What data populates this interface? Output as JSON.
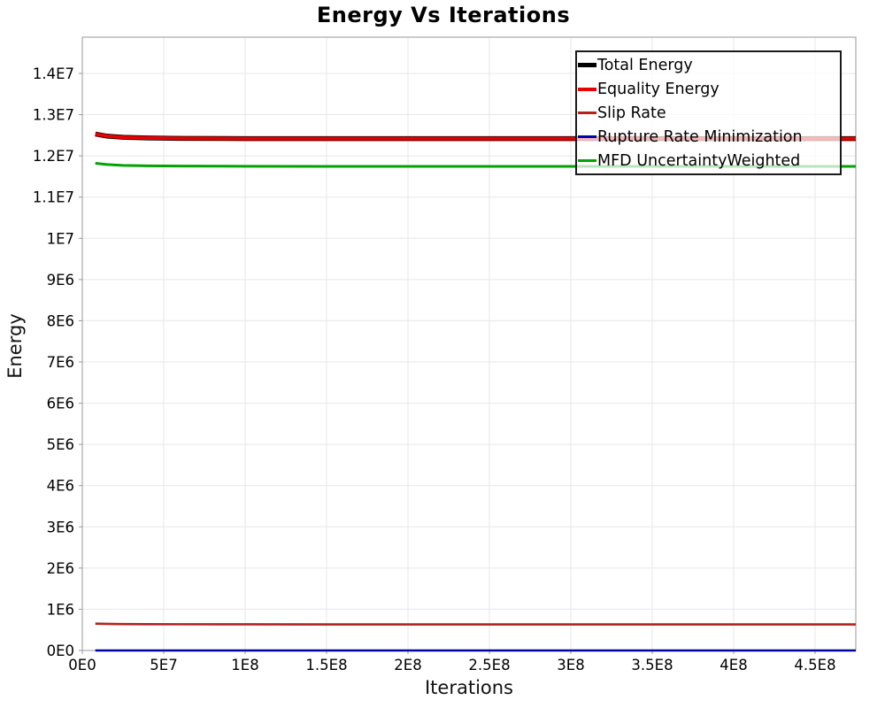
{
  "title": "Energy Vs Iterations",
  "axes": {
    "x_label": "Iterations",
    "y_label": "Energy"
  },
  "legend": {
    "position": "top-right",
    "items": [
      {
        "label": "Total Energy",
        "color": "#000000",
        "marker_thickness": 5
      },
      {
        "label": "Equality Energy",
        "color": "#e60000",
        "marker_thickness": 4
      },
      {
        "label": "Slip Rate",
        "color": "#b22222",
        "marker_thickness": 3
      },
      {
        "label": "Rupture Rate Minimization",
        "color": "#0000a8",
        "marker_thickness": 3
      },
      {
        "label": "MFD UncertaintyWeighted",
        "color": "#00a400",
        "marker_thickness": 3
      }
    ]
  },
  "chart_data": {
    "type": "line",
    "title": "Energy Vs Iterations",
    "xlabel": "Iterations",
    "ylabel": "Energy",
    "xlim": [
      0,
      475000000
    ],
    "ylim": [
      0,
      14880000
    ],
    "grid": true,
    "grid_color": "#e7e7e7",
    "border_color": "#999999",
    "legend_position": "top-right",
    "x_ticks": [
      {
        "value": 0,
        "label": "0E0"
      },
      {
        "value": 50000000,
        "label": "5E7"
      },
      {
        "value": 100000000,
        "label": "1E8"
      },
      {
        "value": 150000000,
        "label": "1.5E8"
      },
      {
        "value": 200000000,
        "label": "2E8"
      },
      {
        "value": 250000000,
        "label": "2.5E8"
      },
      {
        "value": 300000000,
        "label": "3E8"
      },
      {
        "value": 350000000,
        "label": "3.5E8"
      },
      {
        "value": 400000000,
        "label": "4E8"
      },
      {
        "value": 450000000,
        "label": "4.5E8"
      }
    ],
    "y_ticks": [
      {
        "value": 0,
        "label": "0E0"
      },
      {
        "value": 1000000,
        "label": "1E6"
      },
      {
        "value": 2000000,
        "label": "2E6"
      },
      {
        "value": 3000000,
        "label": "3E6"
      },
      {
        "value": 4000000,
        "label": "4E6"
      },
      {
        "value": 5000000,
        "label": "5E6"
      },
      {
        "value": 6000000,
        "label": "6E6"
      },
      {
        "value": 7000000,
        "label": "7E6"
      },
      {
        "value": 8000000,
        "label": "8E6"
      },
      {
        "value": 9000000,
        "label": "9E6"
      },
      {
        "value": 10000000,
        "label": "1E7"
      },
      {
        "value": 11000000,
        "label": "1.1E7"
      },
      {
        "value": 12000000,
        "label": "1.2E7"
      },
      {
        "value": 13000000,
        "label": "1.3E7"
      },
      {
        "value": 14000000,
        "label": "1.4E7"
      }
    ],
    "x": [
      8000000,
      15000000,
      25000000,
      40000000,
      60000000,
      100000000,
      150000000,
      200000000,
      250000000,
      300000000,
      350000000,
      400000000,
      450000000,
      475000000
    ],
    "series": [
      {
        "name": "Total Energy",
        "color": "#000000",
        "width": 5.5,
        "values": [
          12530000,
          12480000,
          12450000,
          12435000,
          12425000,
          12420000,
          12420000,
          12420000,
          12420000,
          12420000,
          12420000,
          12420000,
          12420000,
          12420000
        ]
      },
      {
        "name": "Equality Energy",
        "color": "#e60000",
        "width": 4,
        "values": [
          12530000,
          12480000,
          12450000,
          12435000,
          12425000,
          12420000,
          12420000,
          12420000,
          12420000,
          12420000,
          12420000,
          12420000,
          12420000,
          12420000
        ]
      },
      {
        "name": "Slip Rate",
        "color": "#b22222",
        "width": 2.6,
        "values": [
          650000,
          645000,
          641000,
          638000,
          636000,
          634000,
          633000,
          633000,
          633000,
          633000,
          633000,
          633000,
          633000,
          633000
        ]
      },
      {
        "name": "Rupture Rate Minimization",
        "color": "#0000a8",
        "width": 2.6,
        "values": [
          0,
          0,
          0,
          0,
          0,
          0,
          0,
          0,
          0,
          0,
          0,
          0,
          0,
          0
        ]
      },
      {
        "name": "MFD UncertaintyWeighted",
        "color": "#00a400",
        "width": 3,
        "values": [
          11820000,
          11790000,
          11770000,
          11758000,
          11752000,
          11748000,
          11745000,
          11745000,
          11745000,
          11745000,
          11745000,
          11745000,
          11745000,
          11745000
        ]
      }
    ]
  }
}
